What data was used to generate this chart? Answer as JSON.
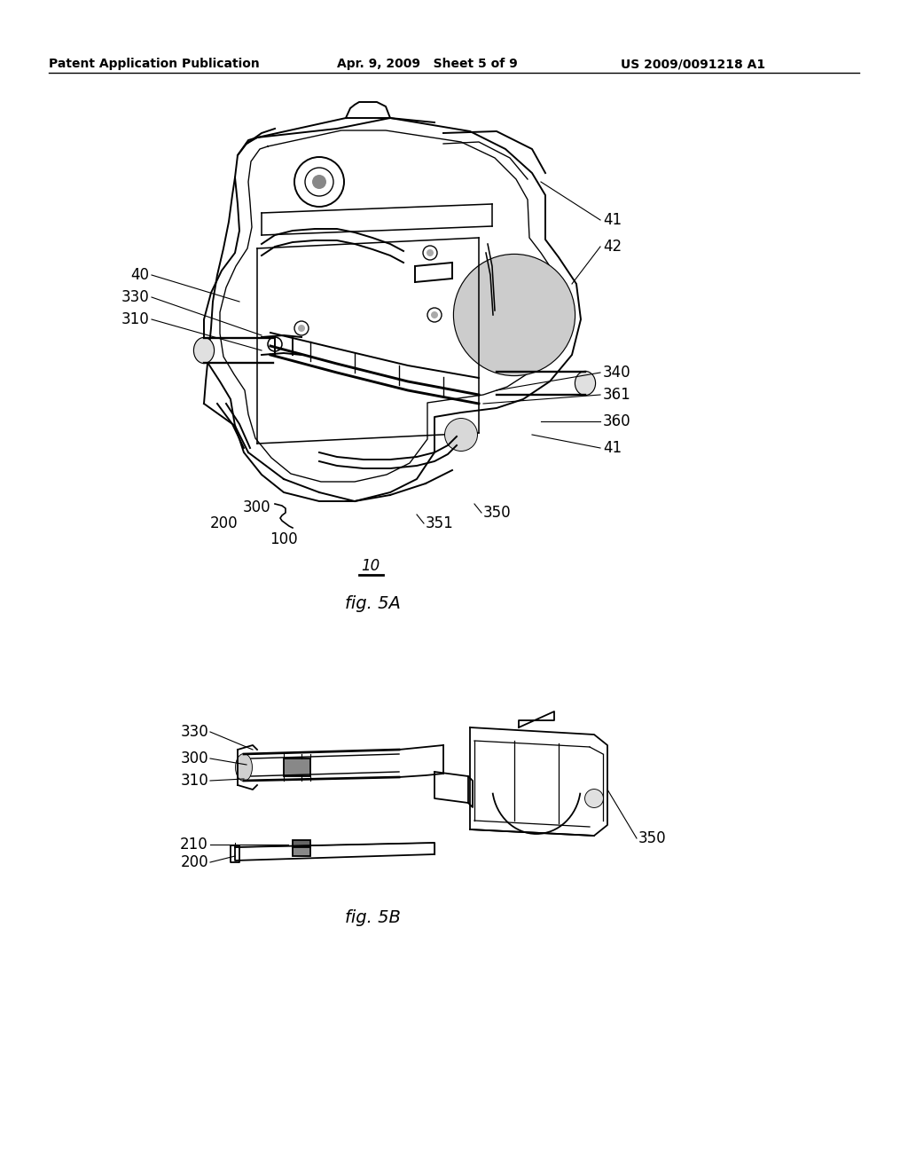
{
  "background_color": "#ffffff",
  "header_left": "Patent Application Publication",
  "header_center": "Apr. 9, 2009   Sheet 5 of 9",
  "header_right": "US 2009/0091218 A1",
  "header_fontsize": 11,
  "fig5a_label": "fig. 5A",
  "fig5b_label": "fig. 5B"
}
